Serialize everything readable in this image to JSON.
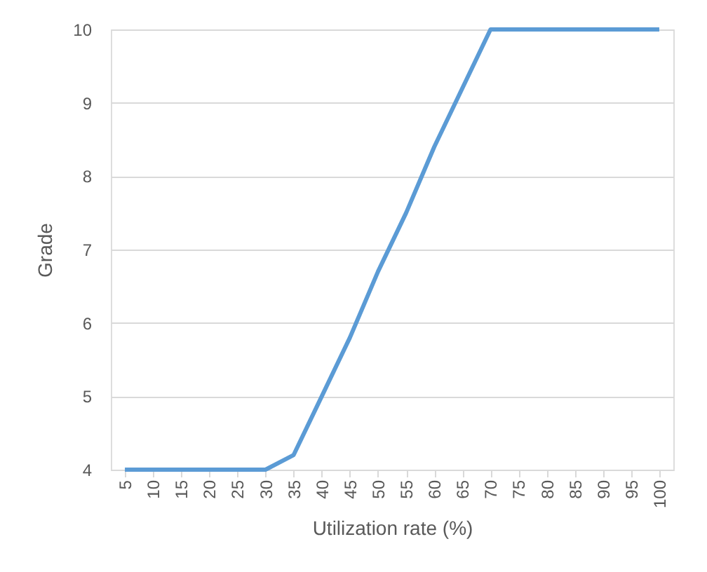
{
  "chart_data": {
    "type": "line",
    "xlabel": "Utilization rate (%)",
    "ylabel": "Grade",
    "categories": [
      "5",
      "10",
      "15",
      "20",
      "25",
      "30",
      "35",
      "40",
      "45",
      "50",
      "55",
      "60",
      "65",
      "70",
      "75",
      "80",
      "85",
      "90",
      "95",
      "100"
    ],
    "series": [
      {
        "color": "#5b9bd5",
        "values": [
          4,
          4,
          4,
          4,
          4,
          4,
          4.2,
          5.0,
          5.8,
          6.7,
          7.5,
          8.4,
          9.2,
          10,
          10,
          10,
          10,
          10,
          10,
          10
        ]
      }
    ],
    "ylim": [
      4,
      10
    ],
    "yticks": [
      4,
      5,
      6,
      7,
      8,
      9,
      10
    ],
    "grid": "y",
    "marker": "none",
    "line_style": "solid"
  }
}
